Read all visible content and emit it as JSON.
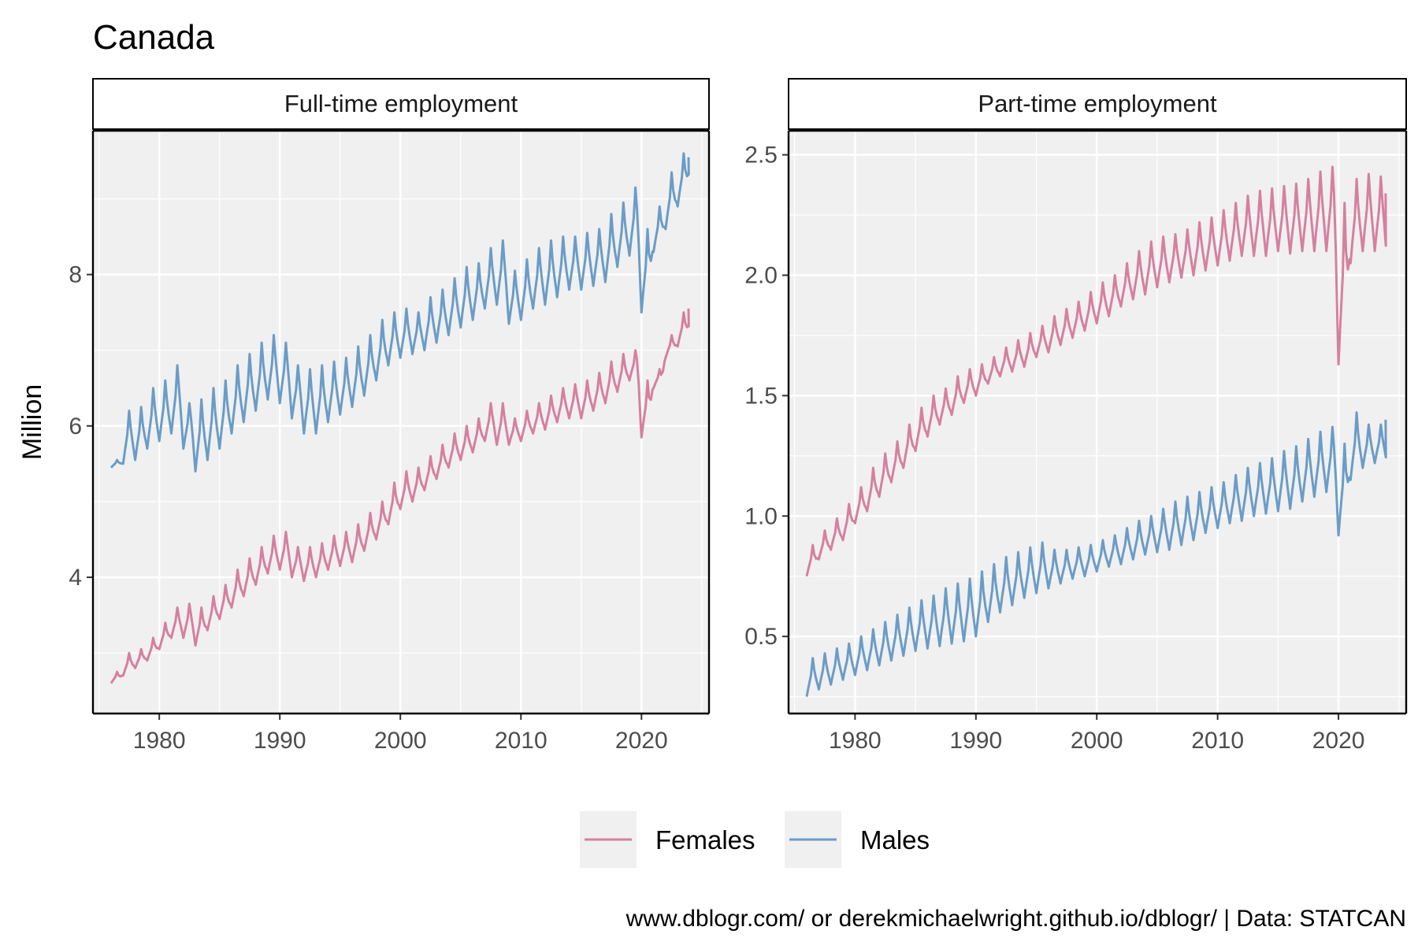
{
  "title": "Canada",
  "ylabel": "Million",
  "caption": "www.dblogr.com/ or derekmichaelwright.github.io/dblogr/ | Data: STATCAN",
  "colors": {
    "Females": "#d5809f",
    "Males": "#6a9cc7",
    "panel_bg": "#f0f0f0",
    "grid": "#ffffff",
    "strip_bg": "#ffffff"
  },
  "legend": {
    "position": "bottom",
    "entries": [
      "Females",
      "Males"
    ]
  },
  "chart_data": [
    {
      "type": "line",
      "panel_title": "Full-time employment",
      "xlim": [
        1974.5,
        2025.6
      ],
      "ylim": [
        2.2,
        9.9
      ],
      "xticks": [
        1980,
        1990,
        2000,
        2010,
        2020
      ],
      "yticks": [
        4,
        6,
        8
      ],
      "ytick_labels": [
        "4",
        "6",
        "8"
      ],
      "x_tick_labels": [
        "1980",
        "1990",
        "2000",
        "2010",
        "2020"
      ],
      "grid": true,
      "seasonal_note": "monthly series, values below are approximate annual low/high points",
      "series": [
        {
          "name": "Females",
          "x": [
            1976,
            1977,
            1978,
            1979,
            1980,
            1981,
            1982,
            1983,
            1984,
            1985,
            1986,
            1987,
            1988,
            1989,
            1990,
            1991,
            1992,
            1993,
            1994,
            1995,
            1996,
            1997,
            1998,
            1999,
            2000,
            2001,
            2002,
            2003,
            2004,
            2005,
            2006,
            2007,
            2008,
            2009,
            2010,
            2011,
            2012,
            2013,
            2014,
            2015,
            2016,
            2017,
            2018,
            2019,
            2020,
            2021,
            2022,
            2023,
            2024
          ],
          "low": [
            2.6,
            2.7,
            2.8,
            2.9,
            3.05,
            3.2,
            3.2,
            3.1,
            3.3,
            3.45,
            3.6,
            3.75,
            3.9,
            4.05,
            4.1,
            4.0,
            3.95,
            4.0,
            4.1,
            4.15,
            4.2,
            4.35,
            4.5,
            4.7,
            4.9,
            5.0,
            5.15,
            5.3,
            5.45,
            5.55,
            5.65,
            5.8,
            5.75,
            5.75,
            5.8,
            5.9,
            5.95,
            6.05,
            6.1,
            6.1,
            6.2,
            6.3,
            6.45,
            6.6,
            5.85,
            6.5,
            6.9,
            7.05,
            7.3
          ],
          "high": [
            2.75,
            3.0,
            3.05,
            3.2,
            3.4,
            3.6,
            3.65,
            3.6,
            3.75,
            3.9,
            4.1,
            4.25,
            4.4,
            4.55,
            4.6,
            4.4,
            4.4,
            4.45,
            4.55,
            4.6,
            4.7,
            4.85,
            5.0,
            5.25,
            5.4,
            5.45,
            5.6,
            5.75,
            5.9,
            6.0,
            6.1,
            6.3,
            6.3,
            6.1,
            6.2,
            6.3,
            6.4,
            6.5,
            6.55,
            6.6,
            6.7,
            6.85,
            6.95,
            7.0,
            6.6,
            6.75,
            7.2,
            7.5,
            7.55
          ]
        },
        {
          "name": "Males",
          "x": [
            1976,
            1977,
            1978,
            1979,
            1980,
            1981,
            1982,
            1983,
            1984,
            1985,
            1986,
            1987,
            1988,
            1989,
            1990,
            1991,
            1992,
            1993,
            1994,
            1995,
            1996,
            1997,
            1998,
            1999,
            2000,
            2001,
            2002,
            2003,
            2004,
            2005,
            2006,
            2007,
            2008,
            2009,
            2010,
            2011,
            2012,
            2013,
            2014,
            2015,
            2016,
            2017,
            2018,
            2019,
            2020,
            2021,
            2022,
            2023,
            2024
          ],
          "low": [
            5.45,
            5.5,
            5.55,
            5.7,
            5.8,
            5.9,
            5.7,
            5.4,
            5.55,
            5.7,
            5.9,
            6.05,
            6.2,
            6.35,
            6.3,
            6.1,
            5.9,
            5.9,
            6.05,
            6.15,
            6.25,
            6.4,
            6.6,
            6.8,
            6.9,
            6.95,
            7.0,
            7.1,
            7.2,
            7.3,
            7.4,
            7.55,
            7.6,
            7.35,
            7.4,
            7.55,
            7.6,
            7.7,
            7.8,
            7.8,
            7.85,
            7.9,
            8.1,
            8.25,
            7.5,
            8.3,
            8.6,
            8.9,
            9.3
          ],
          "high": [
            5.55,
            6.2,
            6.25,
            6.5,
            6.6,
            6.8,
            6.3,
            6.35,
            6.5,
            6.6,
            6.8,
            6.95,
            7.1,
            7.2,
            7.1,
            6.8,
            6.75,
            6.8,
            6.85,
            6.9,
            7.05,
            7.2,
            7.4,
            7.5,
            7.55,
            7.5,
            7.7,
            7.8,
            7.95,
            8.1,
            8.15,
            8.35,
            8.45,
            8.05,
            8.2,
            8.35,
            8.45,
            8.5,
            8.5,
            8.55,
            8.6,
            8.8,
            8.95,
            9.15,
            8.6,
            8.9,
            9.35,
            9.6,
            9.55
          ]
        }
      ]
    },
    {
      "type": "line",
      "panel_title": "Part-time employment",
      "xlim": [
        1974.5,
        2025.6
      ],
      "ylim": [
        0.18,
        2.6
      ],
      "xticks": [
        1980,
        1990,
        2000,
        2010,
        2020
      ],
      "yticks": [
        0.5,
        1.0,
        1.5,
        2.0,
        2.5
      ],
      "ytick_labels": [
        "0.5",
        "1.0",
        "1.5",
        "2.0",
        "2.5"
      ],
      "x_tick_labels": [
        "1980",
        "1990",
        "2000",
        "2010",
        "2020"
      ],
      "grid": true,
      "series": [
        {
          "name": "Females",
          "x": [
            1976,
            1977,
            1978,
            1979,
            1980,
            1981,
            1982,
            1983,
            1984,
            1985,
            1986,
            1987,
            1988,
            1989,
            1990,
            1991,
            1992,
            1993,
            1994,
            1995,
            1996,
            1997,
            1998,
            1999,
            2000,
            2001,
            2002,
            2003,
            2004,
            2005,
            2006,
            2007,
            2008,
            2009,
            2010,
            2011,
            2012,
            2013,
            2014,
            2015,
            2016,
            2017,
            2018,
            2019,
            2020,
            2021,
            2022,
            2023,
            2024
          ],
          "low": [
            0.75,
            0.82,
            0.86,
            0.9,
            0.97,
            1.02,
            1.08,
            1.14,
            1.2,
            1.27,
            1.33,
            1.38,
            1.42,
            1.47,
            1.5,
            1.55,
            1.58,
            1.6,
            1.62,
            1.66,
            1.68,
            1.71,
            1.74,
            1.77,
            1.8,
            1.83,
            1.87,
            1.9,
            1.92,
            1.95,
            1.97,
            1.99,
            2.0,
            2.02,
            2.04,
            2.06,
            2.08,
            2.08,
            2.08,
            2.1,
            2.09,
            2.1,
            2.1,
            2.1,
            1.63,
            2.05,
            2.1,
            2.1,
            2.07
          ],
          "high": [
            0.88,
            0.94,
            0.99,
            1.05,
            1.12,
            1.2,
            1.26,
            1.31,
            1.38,
            1.45,
            1.5,
            1.53,
            1.58,
            1.61,
            1.63,
            1.66,
            1.7,
            1.73,
            1.76,
            1.79,
            1.83,
            1.86,
            1.89,
            1.93,
            1.97,
            2.0,
            2.05,
            2.1,
            2.14,
            2.16,
            2.17,
            2.19,
            2.22,
            2.24,
            2.27,
            2.3,
            2.33,
            2.35,
            2.36,
            2.37,
            2.38,
            2.4,
            2.43,
            2.45,
            2.3,
            2.4,
            2.42,
            2.41,
            2.34
          ]
        },
        {
          "name": "Males",
          "x": [
            1976,
            1977,
            1978,
            1979,
            1980,
            1981,
            1982,
            1983,
            1984,
            1985,
            1986,
            1987,
            1988,
            1989,
            1990,
            1991,
            1992,
            1993,
            1994,
            1995,
            1996,
            1997,
            1998,
            1999,
            2000,
            2001,
            2002,
            2003,
            2004,
            2005,
            2006,
            2007,
            2008,
            2009,
            2010,
            2011,
            2012,
            2013,
            2014,
            2015,
            2016,
            2017,
            2018,
            2019,
            2020,
            2021,
            2022,
            2023,
            2024
          ],
          "low": [
            0.25,
            0.28,
            0.3,
            0.32,
            0.34,
            0.36,
            0.38,
            0.4,
            0.42,
            0.44,
            0.45,
            0.46,
            0.47,
            0.48,
            0.5,
            0.56,
            0.6,
            0.63,
            0.66,
            0.68,
            0.7,
            0.72,
            0.74,
            0.75,
            0.77,
            0.79,
            0.8,
            0.82,
            0.84,
            0.85,
            0.86,
            0.88,
            0.9,
            0.93,
            0.95,
            0.97,
            0.98,
            1.0,
            1.01,
            1.02,
            1.03,
            1.06,
            1.08,
            1.1,
            0.92,
            1.15,
            1.2,
            1.22,
            1.22
          ],
          "high": [
            0.41,
            0.43,
            0.45,
            0.47,
            0.5,
            0.53,
            0.56,
            0.59,
            0.62,
            0.65,
            0.67,
            0.7,
            0.72,
            0.74,
            0.77,
            0.8,
            0.83,
            0.85,
            0.87,
            0.89,
            0.86,
            0.86,
            0.87,
            0.88,
            0.9,
            0.92,
            0.95,
            0.98,
            1.0,
            1.03,
            1.06,
            1.08,
            1.1,
            1.12,
            1.14,
            1.17,
            1.2,
            1.22,
            1.24,
            1.27,
            1.29,
            1.32,
            1.35,
            1.37,
            1.3,
            1.43,
            1.38,
            1.38,
            1.4
          ]
        }
      ]
    }
  ]
}
